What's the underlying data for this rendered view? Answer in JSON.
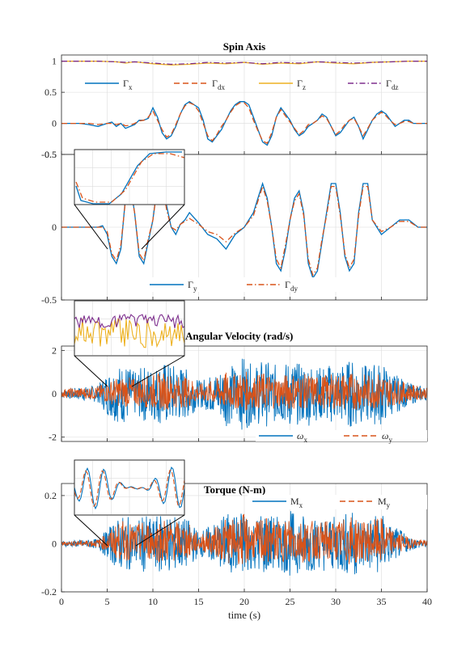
{
  "colors": {
    "blue": "#0072BD",
    "orange": "#D95319",
    "yellow": "#EDB120",
    "purple": "#7E2F8E",
    "axis": "#262626",
    "grid": "#dcdcdc"
  },
  "chart_data": [
    {
      "type": "line",
      "title": "Spin Axis",
      "xlim": [
        0,
        40
      ],
      "ylim": [
        -0.5,
        1.1
      ],
      "yticks": [
        "1",
        "0.5",
        "0",
        "-0.5"
      ],
      "grid": true,
      "legend_position": "top",
      "legend": [
        {
          "base": "Γ",
          "sub": "x",
          "color": "#0072BD",
          "style": "solid"
        },
        {
          "base": "Γ",
          "sub": "dx",
          "color": "#D95319",
          "style": "dashed"
        },
        {
          "base": "Γ",
          "sub": "z",
          "color": "#EDB120",
          "style": "solid"
        },
        {
          "base": "Γ",
          "sub": "dz",
          "color": "#7E2F8E",
          "style": "dashdot"
        }
      ],
      "series": [
        {
          "name": "Γx",
          "x": [
            0,
            1,
            2,
            3,
            4,
            5,
            5.5,
            6,
            6.5,
            7,
            7.5,
            8,
            8.5,
            9,
            9.5,
            10,
            10.5,
            11,
            11.5,
            12,
            12.5,
            13,
            13.5,
            14,
            14.5,
            15,
            15.5,
            16,
            16.5,
            17,
            17.5,
            18,
            18.5,
            19,
            19.5,
            20,
            20.5,
            21,
            21.5,
            22,
            22.5,
            23,
            23.5,
            24,
            24.5,
            25,
            25.5,
            26,
            26.5,
            27,
            27.5,
            28,
            28.5,
            29,
            29.5,
            30,
            30.5,
            31,
            31.5,
            32,
            32.5,
            33,
            33.5,
            34,
            34.5,
            35,
            35.5,
            36,
            36.5,
            37,
            37.5,
            38,
            38.5,
            39,
            39.5,
            40
          ],
          "y": [
            0,
            0,
            0,
            -0.02,
            -0.05,
            0,
            0.02,
            -0.05,
            0,
            -0.08,
            -0.05,
            -0.02,
            0.05,
            0.05,
            0.08,
            0.25,
            0.1,
            -0.15,
            -0.25,
            -0.2,
            -0.05,
            0.15,
            0.3,
            0.35,
            0.3,
            0.25,
            0.05,
            -0.25,
            -0.3,
            -0.2,
            -0.1,
            0.05,
            0.2,
            0.3,
            0.35,
            0.35,
            0.3,
            0.1,
            -0.1,
            -0.3,
            -0.35,
            -0.2,
            0.1,
            0.25,
            0.15,
            0.05,
            -0.1,
            -0.2,
            -0.15,
            -0.05,
            0,
            0.05,
            0.15,
            0.1,
            -0.05,
            -0.2,
            -0.15,
            -0.05,
            0.05,
            0.1,
            -0.05,
            -0.25,
            -0.1,
            0.05,
            0.15,
            0.2,
            0.15,
            0.05,
            -0.05,
            0,
            0.05,
            0.05,
            0,
            0,
            0,
            0
          ]
        },
        {
          "name": "Γdx",
          "x": [
            0,
            1,
            2,
            3,
            4,
            5,
            5.5,
            6,
            6.5,
            7,
            7.5,
            8,
            8.5,
            9,
            9.5,
            10,
            10.5,
            11,
            11.5,
            12,
            12.5,
            13,
            13.5,
            14,
            14.5,
            15,
            15.5,
            16,
            16.5,
            17,
            17.5,
            18,
            18.5,
            19,
            19.5,
            20,
            20.5,
            21,
            21.5,
            22,
            22.5,
            23,
            23.5,
            24,
            24.5,
            25,
            25.5,
            26,
            26.5,
            27,
            27.5,
            28,
            28.5,
            29,
            29.5,
            30,
            30.5,
            31,
            31.5,
            32,
            32.5,
            33,
            33.5,
            34,
            34.5,
            35,
            35.5,
            36,
            36.5,
            37,
            37.5,
            38,
            38.5,
            39,
            39.5,
            40
          ],
          "y": [
            0,
            0,
            0,
            0,
            -0.02,
            0,
            0,
            -0.02,
            0,
            -0.04,
            -0.03,
            0,
            0.04,
            0.05,
            0.1,
            0.2,
            0.05,
            -0.1,
            -0.22,
            -0.18,
            -0.02,
            0.15,
            0.28,
            0.33,
            0.3,
            0.2,
            0,
            -0.2,
            -0.28,
            -0.18,
            -0.05,
            0.05,
            0.18,
            0.28,
            0.33,
            0.33,
            0.25,
            0.05,
            -0.12,
            -0.28,
            -0.32,
            -0.15,
            0.1,
            0.22,
            0.12,
            0.02,
            -0.08,
            -0.18,
            -0.12,
            -0.02,
            0,
            0.05,
            0.12,
            0.08,
            -0.05,
            -0.18,
            -0.12,
            -0.02,
            0.05,
            0.08,
            -0.05,
            -0.2,
            -0.08,
            0.05,
            0.12,
            0.18,
            0.12,
            0.04,
            -0.02,
            0,
            0.03,
            0.03,
            0,
            0,
            0,
            0
          ]
        },
        {
          "name": "Γz",
          "x": [
            0,
            2,
            4,
            6,
            7,
            8,
            10,
            12,
            14,
            16,
            18,
            20,
            22,
            24,
            26,
            28,
            30,
            32,
            34,
            36,
            38,
            40
          ],
          "y": [
            1,
            1,
            1,
            0.99,
            0.97,
            0.99,
            0.96,
            0.94,
            0.95,
            0.97,
            0.96,
            0.98,
            0.95,
            0.97,
            0.96,
            0.99,
            0.97,
            0.96,
            0.98,
            0.99,
            1,
            1
          ]
        },
        {
          "name": "Γdz",
          "x": [
            0,
            2,
            4,
            6,
            7,
            8,
            10,
            12,
            14,
            16,
            18,
            20,
            22,
            24,
            26,
            28,
            30,
            32,
            34,
            36,
            38,
            40
          ],
          "y": [
            1,
            1,
            1,
            0.99,
            0.98,
            0.99,
            0.97,
            0.95,
            0.96,
            0.98,
            0.97,
            0.98,
            0.96,
            0.98,
            0.97,
            0.99,
            0.98,
            0.97,
            0.98,
            0.99,
            1,
            1
          ]
        }
      ]
    },
    {
      "type": "line",
      "title": "",
      "xlim": [
        0,
        40
      ],
      "ylim": [
        -0.5,
        0.5
      ],
      "yticks": [
        "0.5",
        "0",
        "-0.5"
      ],
      "grid": true,
      "legend_position": "bottom",
      "legend": [
        {
          "base": "Γ",
          "sub": "y",
          "color": "#0072BD",
          "style": "solid"
        },
        {
          "base": "Γ",
          "sub": "dy",
          "color": "#D95319",
          "style": "dashdot"
        }
      ],
      "series": [
        {
          "name": "Γy",
          "x": [
            0,
            2,
            4,
            4.5,
            5,
            5.5,
            6,
            6.5,
            7,
            7.5,
            8,
            8.5,
            9,
            9.5,
            10,
            10.5,
            11,
            11.5,
            12,
            12.5,
            13,
            13.5,
            14,
            15,
            16,
            17,
            18,
            19,
            20,
            20.5,
            21,
            21.5,
            22,
            22.5,
            23,
            23.5,
            24,
            24.5,
            25,
            25.5,
            26,
            26.5,
            27,
            27.5,
            28,
            28.5,
            29,
            29.5,
            30,
            30.5,
            31,
            31.5,
            32,
            32.5,
            33,
            33.5,
            34,
            35,
            36,
            37,
            38,
            39,
            40
          ],
          "y": [
            0,
            0,
            0,
            0.01,
            -0.05,
            -0.2,
            -0.25,
            -0.15,
            0.2,
            0.3,
            0.1,
            -0.2,
            -0.25,
            -0.1,
            0.05,
            0.3,
            0.35,
            0.15,
            0,
            -0.05,
            0.02,
            0.05,
            0.1,
            0.03,
            -0.05,
            -0.08,
            -0.15,
            -0.05,
            0,
            0.05,
            0.1,
            0.2,
            0.3,
            0.2,
            0,
            -0.25,
            -0.3,
            -0.15,
            0.05,
            0.2,
            0.25,
            0.1,
            -0.25,
            -0.35,
            -0.3,
            -0.1,
            0.1,
            0.3,
            0.3,
            0.1,
            -0.2,
            -0.3,
            -0.25,
            0.1,
            0.3,
            0.3,
            0.05,
            -0.05,
            0,
            0.05,
            0.05,
            0,
            0
          ]
        },
        {
          "name": "Γdy",
          "x": [
            0,
            2,
            4,
            4.5,
            5,
            5.5,
            6,
            6.5,
            7,
            7.5,
            8,
            8.5,
            9,
            9.5,
            10,
            10.5,
            11,
            11.5,
            12,
            12.5,
            13,
            13.5,
            14,
            15,
            16,
            17,
            18,
            19,
            20,
            20.5,
            21,
            21.5,
            22,
            22.5,
            23,
            23.5,
            24,
            24.5,
            25,
            25.5,
            26,
            26.5,
            27,
            27.5,
            28,
            28.5,
            29,
            29.5,
            30,
            30.5,
            31,
            31.5,
            32,
            32.5,
            33,
            33.5,
            34,
            35,
            36,
            37,
            38,
            39,
            40
          ],
          "y": [
            0,
            0,
            0,
            0,
            -0.03,
            -0.18,
            -0.23,
            -0.12,
            0.18,
            0.28,
            0.1,
            -0.18,
            -0.23,
            -0.08,
            0.05,
            0.28,
            0.33,
            0.12,
            0,
            -0.02,
            0.02,
            0.04,
            0.06,
            0.02,
            -0.03,
            -0.05,
            -0.1,
            -0.04,
            0,
            0.04,
            0.08,
            0.18,
            0.28,
            0.18,
            0,
            -0.22,
            -0.28,
            -0.12,
            0.05,
            0.18,
            0.23,
            0.08,
            -0.22,
            -0.33,
            -0.28,
            -0.08,
            0.08,
            0.28,
            0.28,
            0.08,
            -0.18,
            -0.28,
            -0.22,
            0.08,
            0.28,
            0.28,
            0.05,
            -0.03,
            0,
            0.04,
            0.04,
            0,
            0
          ]
        }
      ]
    },
    {
      "type": "line",
      "title": "Angular Velocity (rad/s)",
      "xlim": [
        0,
        40
      ],
      "ylim": [
        -2.2,
        2.2
      ],
      "yticks": [
        "2",
        "0",
        "-2"
      ],
      "grid": true,
      "legend_position": "bottom-right",
      "legend": [
        {
          "base": "ω",
          "sub": "x",
          "color": "#0072BD",
          "style": "solid",
          "italic": true
        },
        {
          "base": "ω",
          "sub": "y",
          "color": "#D95319",
          "style": "dashed",
          "italic": true
        }
      ],
      "envelope": {
        "x": [
          0,
          2,
          4,
          5,
          6,
          7,
          8,
          9,
          10,
          11,
          12,
          13,
          14,
          15,
          16,
          17,
          18,
          19,
          20,
          21,
          22,
          23,
          24,
          25,
          26,
          27,
          28,
          29,
          30,
          31,
          32,
          33,
          34,
          35,
          36,
          37,
          38,
          39,
          40
        ],
        "omega_x": [
          0.2,
          0.3,
          0.4,
          1.0,
          1.3,
          1.4,
          1.0,
          1.3,
          1.2,
          1.5,
          1.4,
          1.3,
          1.1,
          0.6,
          0.8,
          1.0,
          1.5,
          1.3,
          1.8,
          1.2,
          1.6,
          1.4,
          1.3,
          1.6,
          1.4,
          1.5,
          1.2,
          1.4,
          1.3,
          1.5,
          1.6,
          1.3,
          1.4,
          1.5,
          1.0,
          0.8,
          0.5,
          0.4,
          0.3
        ],
        "omega_y": [
          0.25,
          0.3,
          0.4,
          0.6,
          0.8,
          0.9,
          0.8,
          0.9,
          1.0,
          1.1,
          1.0,
          0.9,
          0.9,
          0.5,
          0.6,
          0.8,
          1.1,
          1.0,
          1.2,
          0.9,
          1.1,
          1.0,
          0.9,
          1.1,
          1.0,
          1.0,
          0.9,
          1.0,
          1.0,
          1.1,
          1.1,
          1.0,
          1.0,
          1.1,
          0.8,
          0.7,
          0.5,
          0.4,
          0.3
        ]
      }
    },
    {
      "type": "line",
      "title": "Torque (N-m)",
      "xlim": [
        0,
        40
      ],
      "ylim": [
        -0.2,
        0.25
      ],
      "yticks": [
        "0.2",
        "0",
        "-0.2"
      ],
      "xticks": [
        "0",
        "5",
        "10",
        "15",
        "20",
        "25",
        "30",
        "35",
        "40"
      ],
      "xlabel": "time (s)",
      "grid": true,
      "legend_position": "top-right",
      "legend": [
        {
          "base": "M",
          "sub": "x",
          "color": "#0072BD",
          "style": "solid"
        },
        {
          "base": "M",
          "sub": "y",
          "color": "#D95319",
          "style": "dashed"
        }
      ],
      "envelope": {
        "x": [
          0,
          2,
          4,
          5,
          6,
          7,
          8,
          9,
          10,
          11,
          12,
          13,
          14,
          15,
          16,
          17,
          18,
          19,
          20,
          21,
          22,
          23,
          24,
          25,
          26,
          27,
          28,
          29,
          30,
          31,
          32,
          33,
          34,
          35,
          36,
          37,
          38,
          39,
          40
        ],
        "Mx": [
          0.01,
          0.015,
          0.02,
          0.06,
          0.1,
          0.12,
          0.09,
          0.12,
          0.1,
          0.13,
          0.12,
          0.11,
          0.1,
          0.05,
          0.07,
          0.09,
          0.13,
          0.12,
          0.15,
          0.1,
          0.14,
          0.12,
          0.11,
          0.14,
          0.12,
          0.13,
          0.1,
          0.12,
          0.11,
          0.13,
          0.14,
          0.11,
          0.12,
          0.13,
          0.08,
          0.06,
          0.03,
          0.02,
          0.015
        ],
        "My": [
          0.01,
          0.015,
          0.02,
          0.05,
          0.09,
          0.11,
          0.08,
          0.11,
          0.09,
          0.12,
          0.11,
          0.1,
          0.09,
          0.04,
          0.06,
          0.08,
          0.12,
          0.11,
          0.14,
          0.09,
          0.13,
          0.11,
          0.1,
          0.13,
          0.11,
          0.12,
          0.09,
          0.11,
          0.1,
          0.12,
          0.13,
          0.1,
          0.11,
          0.12,
          0.07,
          0.05,
          0.03,
          0.02,
          0.015
        ]
      }
    }
  ]
}
